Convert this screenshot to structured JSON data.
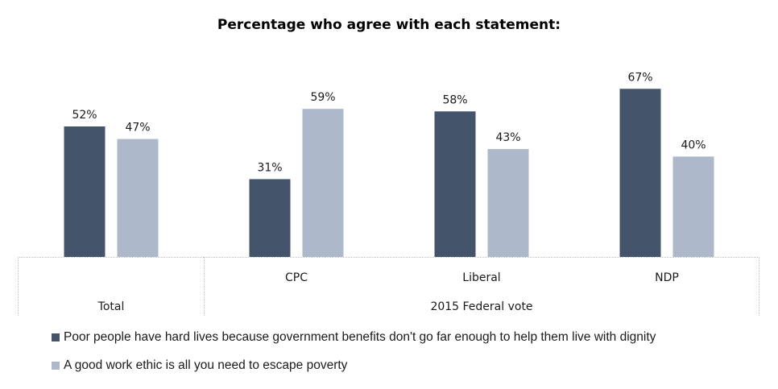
{
  "chart_data": {
    "type": "bar",
    "title": "Percentage who agree with each statement:",
    "xlabel": "",
    "ylabel": "",
    "ylim": [
      0,
      70
    ],
    "grid": false,
    "legend_position": "bottom-left",
    "categories": [
      "Total",
      "CPC",
      "Liberal",
      "NDP"
    ],
    "category_groups": [
      {
        "label": "Total",
        "members": [
          "Total"
        ]
      },
      {
        "label": "2015 Federal vote",
        "members": [
          "CPC",
          "Liberal",
          "NDP"
        ]
      }
    ],
    "category_axis_labels": [
      "",
      "CPC",
      "Liberal",
      "NDP"
    ],
    "series": [
      {
        "name": "Poor people have hard lives because government benefits don't go far enough to help them live with dignity",
        "color": "#44546a",
        "values": [
          52,
          31,
          58,
          67
        ],
        "labels": [
          "52%",
          "31%",
          "58%",
          "67%"
        ]
      },
      {
        "name": "A good work ethic is all you need to escape poverty",
        "color": "#adb9ca",
        "values": [
          47,
          59,
          43,
          40
        ],
        "labels": [
          "47%",
          "59%",
          "43%",
          "40%"
        ]
      }
    ]
  },
  "colors": {
    "axis_border": "#bfbfbf"
  }
}
